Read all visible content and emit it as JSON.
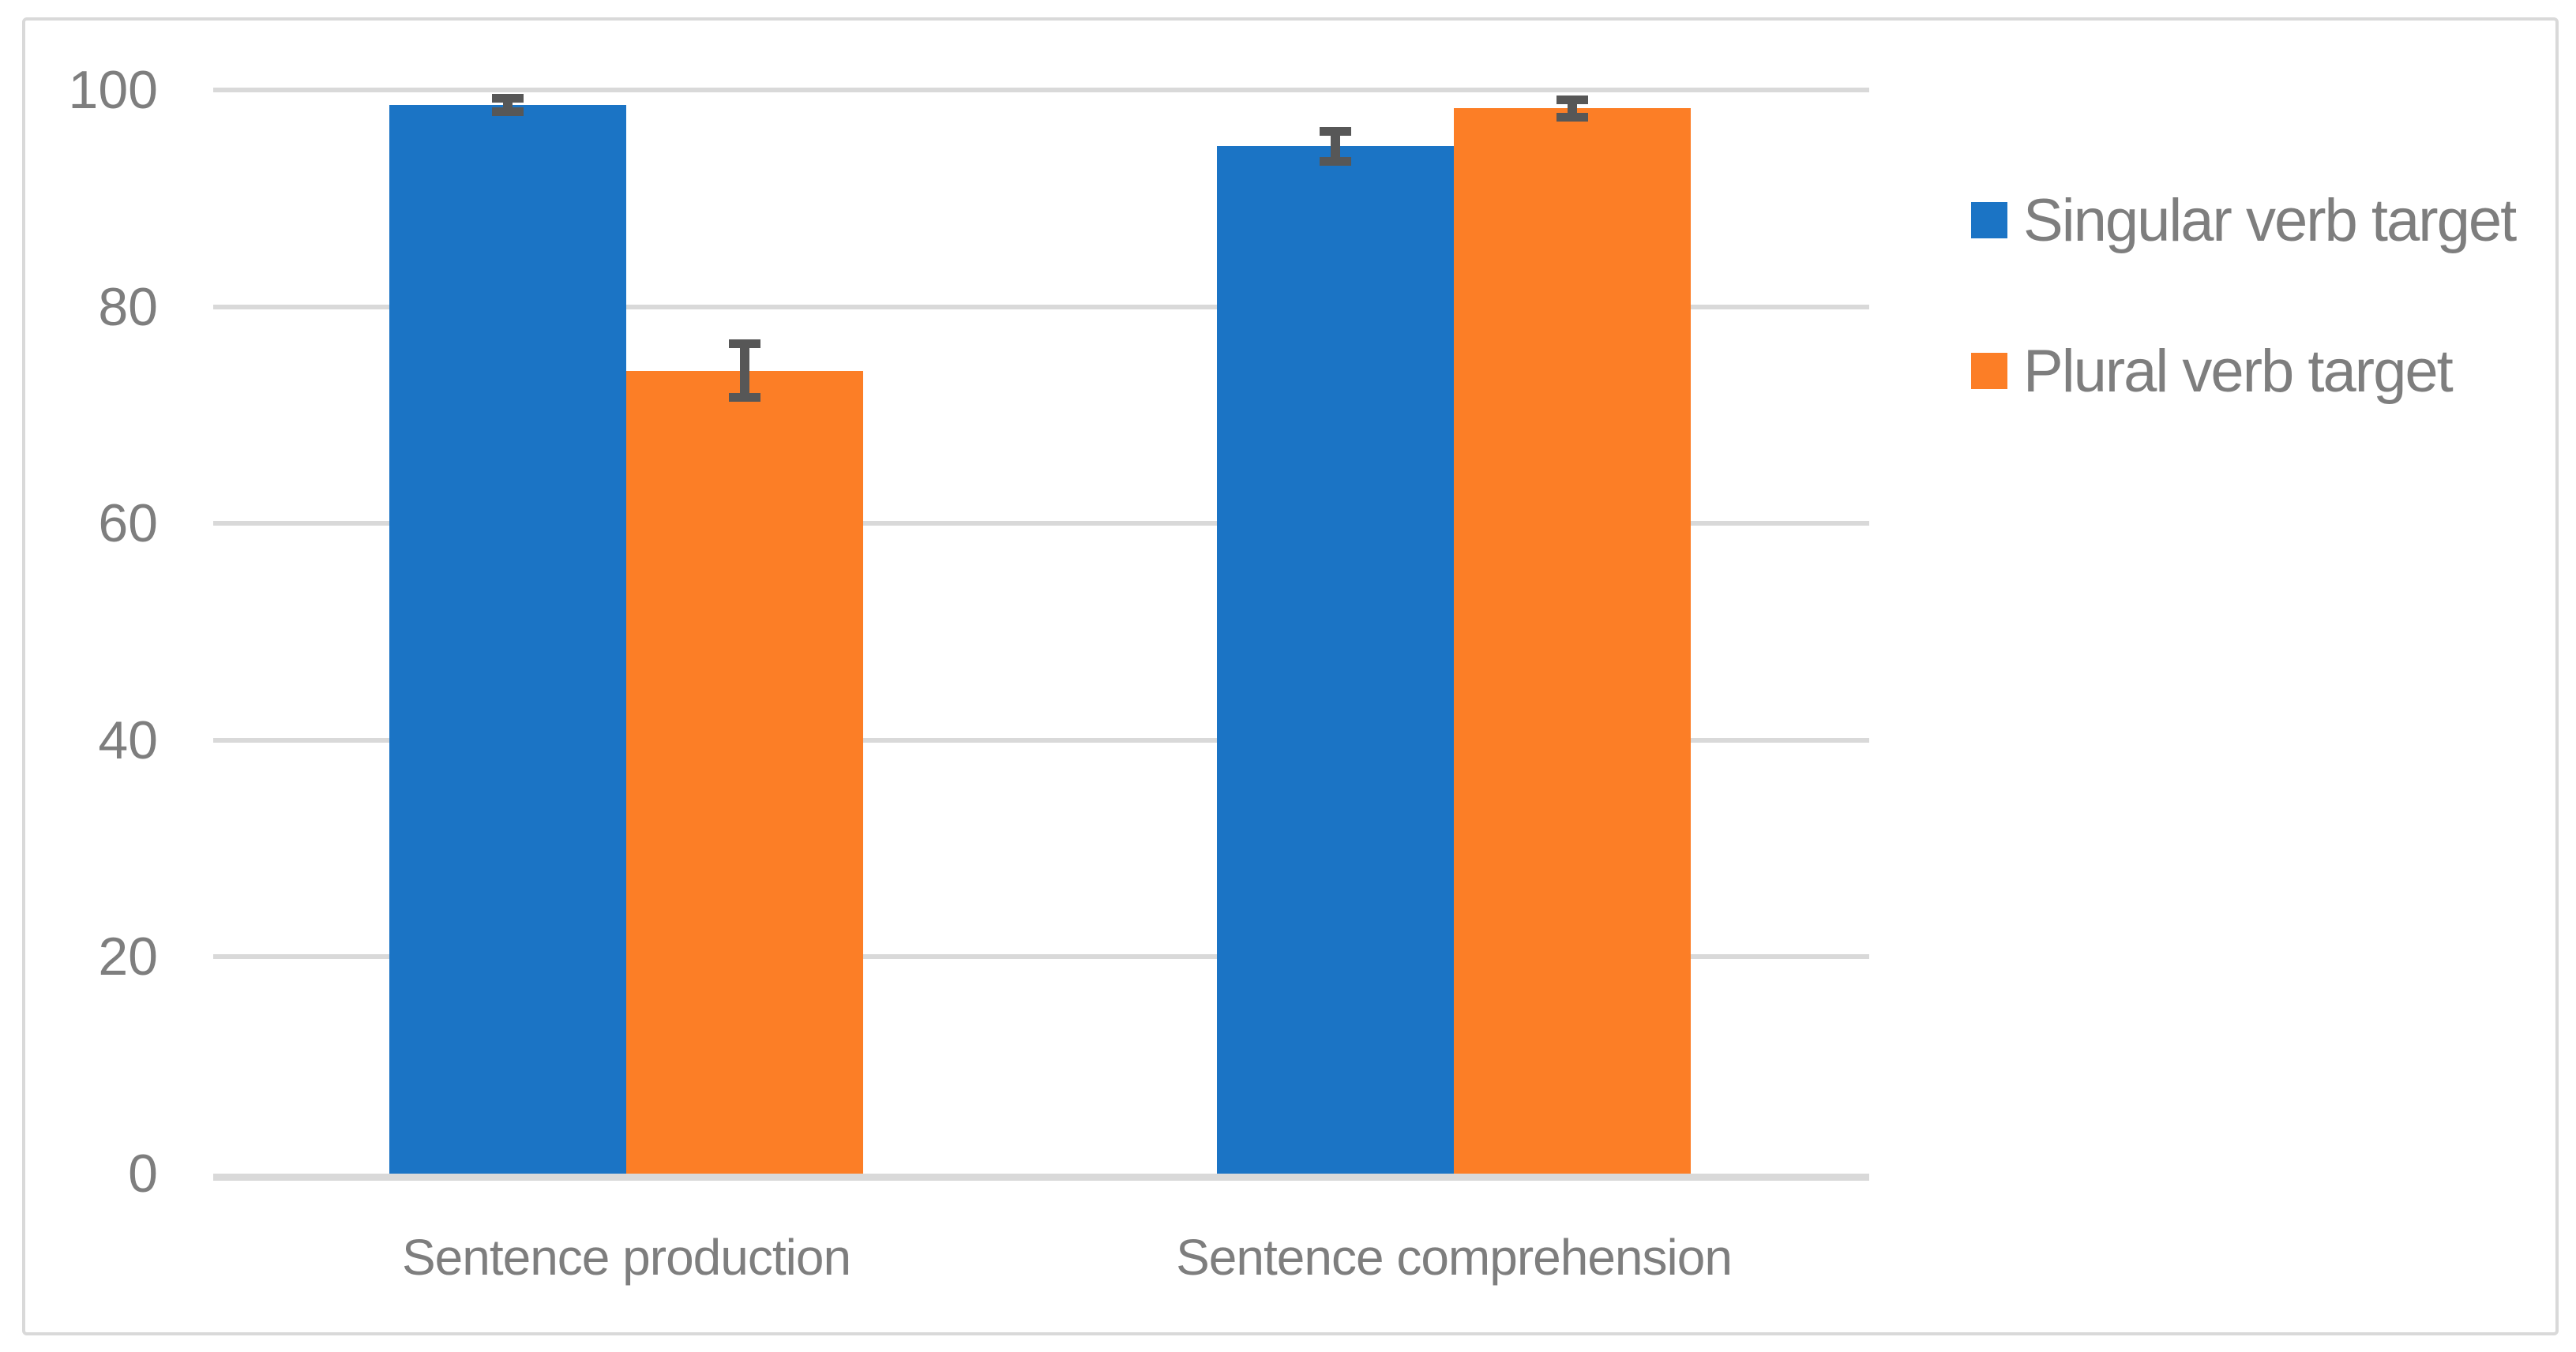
{
  "chart_data": {
    "type": "bar",
    "title": "",
    "xlabel": "",
    "ylabel": "",
    "categories": [
      "Sentence production",
      "Sentence comprehension"
    ],
    "series": [
      {
        "name": "Singular verb target",
        "color": "#1B74C5",
        "values": [
          98.6,
          94.8
        ],
        "errors": [
          0.6,
          1.4
        ]
      },
      {
        "name": "Plural verb target",
        "color": "#FC7E26",
        "values": [
          74.1,
          98.3
        ],
        "errors": [
          2.5,
          0.8
        ]
      }
    ],
    "ylim": [
      0,
      100
    ],
    "yticks": [
      0,
      20,
      40,
      60,
      80,
      100
    ],
    "grid": true,
    "legend_position": "right",
    "error_bars": true
  },
  "colors": {
    "grid": "#D9D9D9",
    "axis": "#D9D9D9",
    "frame_border": "#D9D9D9",
    "text": "#7E7E7E",
    "error_bar": "#575757",
    "background": "#FFFFFF"
  }
}
